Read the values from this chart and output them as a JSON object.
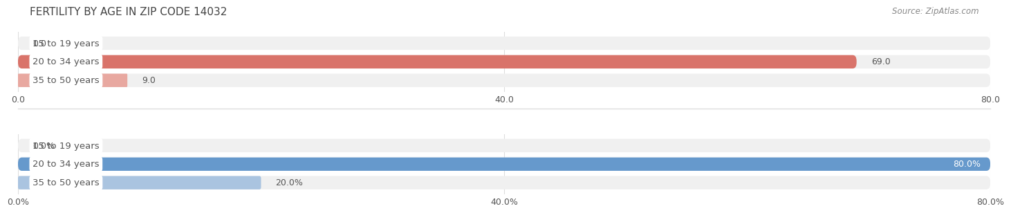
{
  "title": "FERTILITY BY AGE IN ZIP CODE 14032",
  "source": "Source: ZipAtlas.com",
  "top_chart": {
    "categories": [
      "15 to 19 years",
      "20 to 34 years",
      "35 to 50 years"
    ],
    "values": [
      0.0,
      69.0,
      9.0
    ],
    "xlim": [
      0,
      80
    ],
    "xticks": [
      0.0,
      40.0,
      80.0
    ],
    "bar_color_main": "#d9736a",
    "bar_color_light": "#e8a8a0",
    "bar_bg_color": "#f0f0f0",
    "is_percent": false,
    "value_suffix": ""
  },
  "bottom_chart": {
    "categories": [
      "15 to 19 years",
      "20 to 34 years",
      "35 to 50 years"
    ],
    "values": [
      0.0,
      80.0,
      20.0
    ],
    "xlim": [
      0,
      80
    ],
    "xticks": [
      0.0,
      40.0,
      80.0
    ],
    "bar_color_main": "#6699cc",
    "bar_color_light": "#aac4e0",
    "bar_bg_color": "#f0f0f0",
    "is_percent": true,
    "value_suffix": "%"
  },
  "label_text_color": "#555555",
  "value_text_color_dark": "#555555",
  "value_text_color_light": "#ffffff",
  "background_color": "#ffffff",
  "separator_color": "#dddddd",
  "grid_color": "#dddddd",
  "title_fontsize": 11,
  "label_fontsize": 9.5,
  "tick_fontsize": 9,
  "value_fontsize": 9,
  "source_fontsize": 8.5
}
